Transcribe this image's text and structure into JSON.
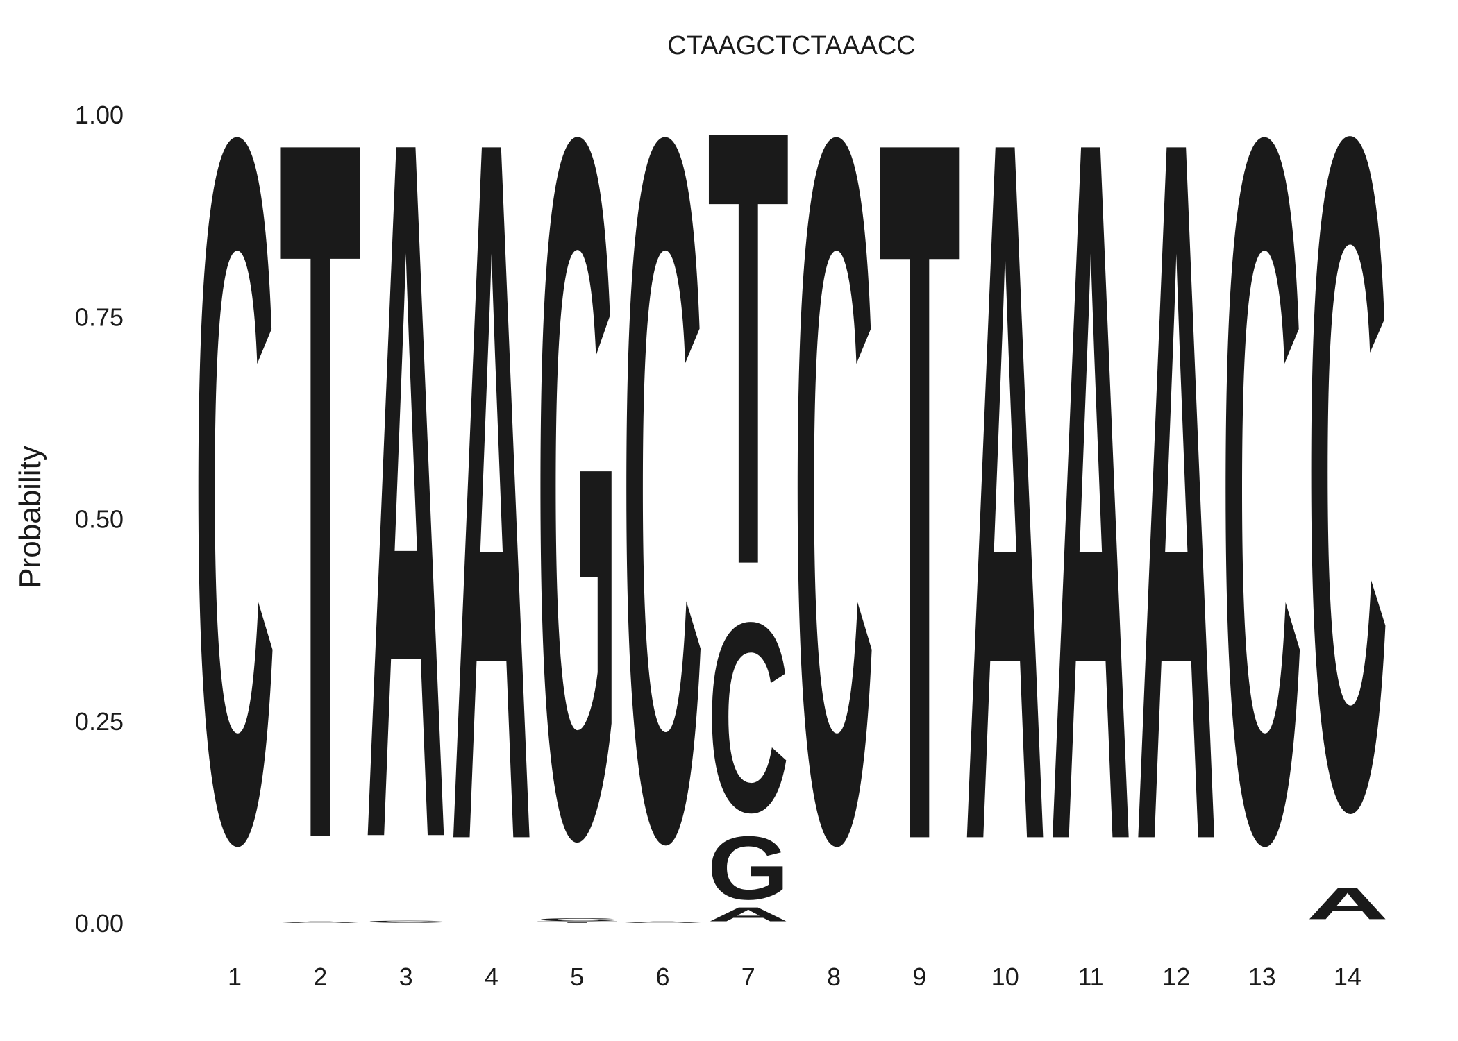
{
  "chart_data": {
    "type": "sequence-logo",
    "title": "CTAAGCTCTAAACC",
    "xlabel": "",
    "ylabel": "Probability",
    "ylim": [
      0,
      1
    ],
    "yticks": [
      "0.00",
      "0.25",
      "0.50",
      "0.75",
      "1.00"
    ],
    "positions": [
      "1",
      "2",
      "3",
      "4",
      "5",
      "6",
      "7",
      "8",
      "9",
      "10",
      "11",
      "12",
      "13",
      "14"
    ],
    "colors": {
      "A": "#00cc00",
      "C": "#0000ff",
      "G": "#ffa500",
      "T": "#ee2c2c"
    },
    "stacks": [
      [
        {
          "base": "C",
          "p": 1.0
        }
      ],
      [
        {
          "base": "A",
          "p": 0.002
        },
        {
          "base": "T",
          "p": 0.998
        }
      ],
      [
        {
          "base": "C",
          "p": 0.003
        },
        {
          "base": "A",
          "p": 0.997
        }
      ],
      [
        {
          "base": "A",
          "p": 1.0
        }
      ],
      [
        {
          "base": "T",
          "p": 0.002
        },
        {
          "base": "C",
          "p": 0.004
        },
        {
          "base": "G",
          "p": 0.994
        }
      ],
      [
        {
          "base": "A",
          "p": 0.002
        },
        {
          "base": "C",
          "p": 0.998
        }
      ],
      [
        {
          "base": "A",
          "p": 0.02
        },
        {
          "base": "G",
          "p": 0.09
        },
        {
          "base": "C",
          "p": 0.27
        },
        {
          "base": "T",
          "p": 0.62
        }
      ],
      [
        {
          "base": "C",
          "p": 1.0
        }
      ],
      [
        {
          "base": "T",
          "p": 1.0
        }
      ],
      [
        {
          "base": "A",
          "p": 1.0
        }
      ],
      [
        {
          "base": "A",
          "p": 1.0
        }
      ],
      [
        {
          "base": "A",
          "p": 1.0
        }
      ],
      [
        {
          "base": "C",
          "p": 1.0
        }
      ],
      [
        {
          "base": "A",
          "p": 0.045
        },
        {
          "base": "C",
          "p": 0.955
        }
      ]
    ]
  }
}
